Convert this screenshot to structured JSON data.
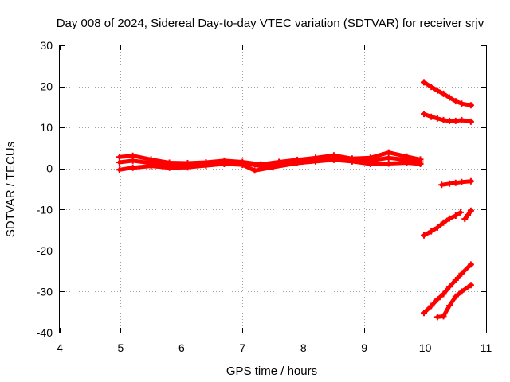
{
  "chart_data": {
    "type": "scatter",
    "title": "Day 008 of 2024, Sidereal Day-to-day VTEC variation (SDTVAR) for receiver srjv",
    "xlabel": "GPS time / hours",
    "ylabel": "SDTVAR / TECUs",
    "xlim": [
      4,
      11
    ],
    "ylim": [
      -40,
      30
    ],
    "xticks": [
      "4",
      "5",
      "6",
      "7",
      "8",
      "9",
      "10",
      "11"
    ],
    "yticks": [
      "-40",
      "-30",
      "-20",
      "-10",
      "0",
      "10",
      "20",
      "30"
    ],
    "grid": true,
    "marker": "plus",
    "color": "#ff0000",
    "series": [
      {
        "x": [
          4.98,
          5.2,
          5.5,
          5.8,
          6.1,
          6.4,
          6.7,
          7.0,
          7.3,
          7.6,
          7.9,
          8.2,
          8.5,
          8.8,
          9.1,
          9.4,
          9.7,
          9.92
        ],
        "y": [
          2.8,
          3.1,
          2.2,
          1.4,
          1.3,
          1.5,
          1.9,
          1.6,
          1.0,
          1.6,
          2.1,
          2.6,
          3.2,
          2.4,
          2.6,
          3.9,
          2.9,
          2.2
        ]
      },
      {
        "x": [
          4.98,
          5.2,
          5.5,
          5.8,
          6.1,
          6.4,
          6.7,
          7.0,
          7.3,
          7.6,
          7.9,
          8.2,
          8.5,
          8.8,
          9.1,
          9.4,
          9.7,
          9.92
        ],
        "y": [
          1.5,
          1.9,
          1.3,
          0.9,
          0.9,
          1.1,
          1.4,
          1.3,
          0.6,
          1.2,
          1.6,
          1.9,
          2.6,
          2.0,
          1.9,
          2.6,
          2.1,
          1.6
        ]
      },
      {
        "x": [
          4.98,
          5.2,
          5.5,
          5.8,
          6.1,
          6.4,
          6.7,
          7.0,
          7.2,
          7.5,
          7.9,
          8.2,
          8.5,
          8.8,
          9.1,
          9.4,
          9.7,
          9.92
        ],
        "y": [
          -0.3,
          0.2,
          0.6,
          0.2,
          0.3,
          0.7,
          1.1,
          0.9,
          -0.5,
          0.3,
          1.3,
          1.7,
          2.1,
          1.7,
          1.1,
          1.2,
          1.4,
          1.1
        ]
      },
      {
        "x": [
          9.98,
          10.1,
          10.2,
          10.3,
          10.4,
          10.5,
          10.6,
          10.75
        ],
        "y": [
          21.0,
          19.9,
          19.0,
          18.2,
          17.3,
          16.4,
          15.8,
          15.4
        ]
      },
      {
        "x": [
          9.98,
          10.1,
          10.2,
          10.3,
          10.4,
          10.5,
          10.6,
          10.75
        ],
        "y": [
          13.3,
          12.6,
          12.2,
          11.8,
          11.6,
          11.6,
          11.8,
          11.4
        ]
      },
      {
        "x": [
          10.27,
          10.4,
          10.5,
          10.6,
          10.75
        ],
        "y": [
          -4.0,
          -3.7,
          -3.5,
          -3.3,
          -3.1
        ]
      },
      {
        "x": [
          9.98,
          10.1,
          10.2,
          10.3,
          10.4,
          10.5,
          10.58
        ],
        "y": [
          -16.3,
          -15.3,
          -14.4,
          -13.2,
          -12.2,
          -11.5,
          -10.7
        ]
      },
      {
        "x": [
          10.65,
          10.7,
          10.75
        ],
        "y": [
          -12.3,
          -11.3,
          -10.3
        ]
      },
      {
        "x": [
          9.98,
          10.1,
          10.2,
          10.3,
          10.4,
          10.5,
          10.6,
          10.75
        ],
        "y": [
          -35.2,
          -33.5,
          -31.9,
          -30.6,
          -28.8,
          -27.2,
          -25.6,
          -23.4
        ]
      },
      {
        "x": [
          10.2,
          10.3,
          10.4,
          10.5,
          10.6,
          10.75
        ],
        "y": [
          -36.2,
          -36.0,
          -33.4,
          -31.2,
          -30.0,
          -28.4
        ]
      }
    ]
  }
}
